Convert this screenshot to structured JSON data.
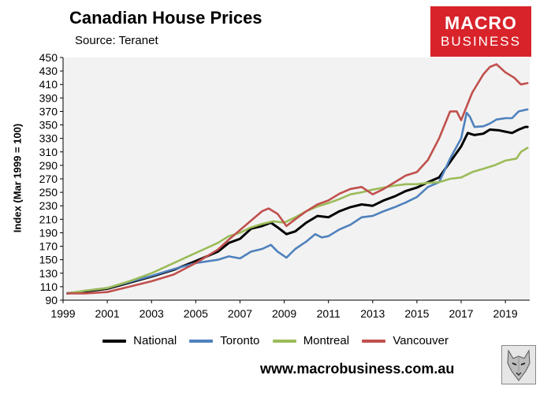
{
  "header": {
    "title": "Canadian House Prices",
    "subtitle": "Source: Teranet",
    "logo_line1": "MACRO",
    "logo_line2": "BUSINESS"
  },
  "footer": {
    "url": "www.macrobusiness.com.au"
  },
  "colors": {
    "national": "#000000",
    "toronto": "#4f81bd",
    "montreal": "#9bbb59",
    "vancouver": "#c0504d",
    "logo_red": "#d8232a",
    "plot_bg": "#f2f2f2"
  },
  "chart_data": {
    "type": "line",
    "title": "Canadian House Prices",
    "subtitle": "Source: Teranet",
    "xlabel": "",
    "ylabel": "Index (Mar 1999 = 100)",
    "xlim": [
      1999,
      2020.1
    ],
    "ylim": [
      90,
      450
    ],
    "yticks": [
      90,
      110,
      130,
      150,
      170,
      190,
      210,
      230,
      250,
      270,
      290,
      310,
      330,
      350,
      370,
      390,
      410,
      430,
      450
    ],
    "xticks": [
      1999,
      2001,
      2003,
      2005,
      2007,
      2009,
      2011,
      2013,
      2015,
      2017,
      2019
    ],
    "grid": false,
    "legend_position": "bottom",
    "series": [
      {
        "name": "National",
        "key": "national",
        "points": [
          [
            1999.2,
            100
          ],
          [
            2000,
            103
          ],
          [
            2001,
            107
          ],
          [
            2002,
            116
          ],
          [
            2003,
            125
          ],
          [
            2004,
            135
          ],
          [
            2005,
            148
          ],
          [
            2006,
            162
          ],
          [
            2006.5,
            175
          ],
          [
            2007,
            181
          ],
          [
            2007.5,
            196
          ],
          [
            2008,
            200
          ],
          [
            2008.4,
            205
          ],
          [
            2008.7,
            198
          ],
          [
            2009.1,
            188
          ],
          [
            2009.5,
            192
          ],
          [
            2010,
            205
          ],
          [
            2010.5,
            215
          ],
          [
            2011,
            213
          ],
          [
            2011.5,
            222
          ],
          [
            2012,
            228
          ],
          [
            2012.5,
            232
          ],
          [
            2013,
            230
          ],
          [
            2013.5,
            238
          ],
          [
            2014,
            244
          ],
          [
            2014.5,
            252
          ],
          [
            2015,
            257
          ],
          [
            2015.5,
            265
          ],
          [
            2016,
            272
          ],
          [
            2016.5,
            295
          ],
          [
            2017,
            318
          ],
          [
            2017.3,
            338
          ],
          [
            2017.6,
            335
          ],
          [
            2018,
            337
          ],
          [
            2018.3,
            343
          ],
          [
            2018.7,
            342
          ],
          [
            2019,
            340
          ],
          [
            2019.3,
            338
          ],
          [
            2019.6,
            343
          ],
          [
            2019.9,
            347
          ],
          [
            2020,
            347
          ]
        ]
      },
      {
        "name": "Toronto",
        "key": "toronto",
        "points": [
          [
            1999.2,
            100
          ],
          [
            2000,
            104
          ],
          [
            2001,
            108
          ],
          [
            2002,
            117
          ],
          [
            2003,
            126
          ],
          [
            2004,
            136
          ],
          [
            2005,
            145
          ],
          [
            2006,
            150
          ],
          [
            2006.5,
            155
          ],
          [
            2007,
            152
          ],
          [
            2007.5,
            162
          ],
          [
            2008,
            166
          ],
          [
            2008.4,
            172
          ],
          [
            2008.7,
            162
          ],
          [
            2009.1,
            153
          ],
          [
            2009.5,
            166
          ],
          [
            2010,
            177
          ],
          [
            2010.4,
            188
          ],
          [
            2010.7,
            183
          ],
          [
            2011,
            185
          ],
          [
            2011.5,
            195
          ],
          [
            2012,
            202
          ],
          [
            2012.5,
            213
          ],
          [
            2013,
            215
          ],
          [
            2013.5,
            222
          ],
          [
            2014,
            228
          ],
          [
            2014.5,
            235
          ],
          [
            2015,
            243
          ],
          [
            2015.5,
            258
          ],
          [
            2016,
            265
          ],
          [
            2016.5,
            300
          ],
          [
            2017,
            330
          ],
          [
            2017.25,
            368
          ],
          [
            2017.4,
            362
          ],
          [
            2017.6,
            347
          ],
          [
            2018,
            348
          ],
          [
            2018.3,
            352
          ],
          [
            2018.6,
            358
          ],
          [
            2019,
            360
          ],
          [
            2019.3,
            360
          ],
          [
            2019.6,
            370
          ],
          [
            2020,
            373
          ]
        ]
      },
      {
        "name": "Montreal",
        "key": "montreal",
        "points": [
          [
            1999.2,
            100
          ],
          [
            2000,
            104
          ],
          [
            2001,
            108
          ],
          [
            2002,
            118
          ],
          [
            2003,
            130
          ],
          [
            2004,
            145
          ],
          [
            2005,
            160
          ],
          [
            2006,
            175
          ],
          [
            2006.5,
            185
          ],
          [
            2007,
            190
          ],
          [
            2007.5,
            198
          ],
          [
            2008,
            203
          ],
          [
            2008.5,
            207
          ],
          [
            2009,
            205
          ],
          [
            2009.5,
            213
          ],
          [
            2010,
            222
          ],
          [
            2010.5,
            229
          ],
          [
            2011,
            234
          ],
          [
            2011.5,
            240
          ],
          [
            2012,
            247
          ],
          [
            2012.5,
            250
          ],
          [
            2013,
            254
          ],
          [
            2013.5,
            257
          ],
          [
            2014,
            260
          ],
          [
            2014.5,
            262
          ],
          [
            2015,
            262
          ],
          [
            2015.5,
            264
          ],
          [
            2016,
            265
          ],
          [
            2016.5,
            270
          ],
          [
            2017,
            272
          ],
          [
            2017.5,
            280
          ],
          [
            2018,
            285
          ],
          [
            2018.5,
            290
          ],
          [
            2019,
            297
          ],
          [
            2019.5,
            300
          ],
          [
            2019.7,
            310
          ],
          [
            2020,
            316
          ]
        ]
      },
      {
        "name": "Vancouver",
        "key": "vancouver",
        "points": [
          [
            1999.2,
            100
          ],
          [
            2000,
            100
          ],
          [
            2001,
            102
          ],
          [
            2002,
            110
          ],
          [
            2003,
            118
          ],
          [
            2004,
            128
          ],
          [
            2005,
            145
          ],
          [
            2006,
            165
          ],
          [
            2006.5,
            180
          ],
          [
            2007,
            194
          ],
          [
            2007.5,
            208
          ],
          [
            2008,
            222
          ],
          [
            2008.3,
            226
          ],
          [
            2008.7,
            218
          ],
          [
            2009.1,
            200
          ],
          [
            2009.5,
            210
          ],
          [
            2010,
            222
          ],
          [
            2010.5,
            232
          ],
          [
            2011,
            238
          ],
          [
            2011.5,
            248
          ],
          [
            2012,
            255
          ],
          [
            2012.5,
            258
          ],
          [
            2013,
            247
          ],
          [
            2013.5,
            255
          ],
          [
            2014,
            265
          ],
          [
            2014.5,
            275
          ],
          [
            2015,
            280
          ],
          [
            2015.5,
            298
          ],
          [
            2016,
            330
          ],
          [
            2016.5,
            370
          ],
          [
            2016.8,
            370
          ],
          [
            2017,
            357
          ],
          [
            2017.5,
            398
          ],
          [
            2018,
            425
          ],
          [
            2018.3,
            436
          ],
          [
            2018.6,
            440
          ],
          [
            2019,
            428
          ],
          [
            2019.4,
            420
          ],
          [
            2019.7,
            410
          ],
          [
            2020,
            412
          ]
        ]
      }
    ]
  }
}
